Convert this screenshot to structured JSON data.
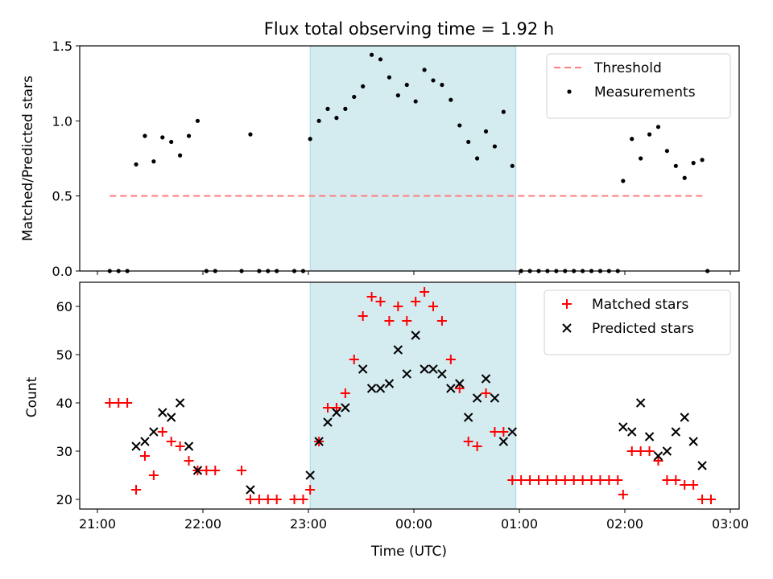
{
  "chart_data": [
    {
      "type": "scatter",
      "title": "Flux total observing time = 1.92 h",
      "xlabel": "",
      "ylabel": "Matched/Predicted stars",
      "x_range": [
        "21:00",
        "03:00"
      ],
      "xticks": [],
      "ylim": [
        0,
        1.5
      ],
      "yticks": [
        "0.0",
        "0.5",
        "1.0",
        "1.5"
      ],
      "ytick_values": [
        0,
        0.5,
        1.0,
        1.5
      ],
      "highlight_span": [
        "23:01",
        "00:58"
      ],
      "legend_position": "upper right",
      "threshold": {
        "name": "Threshold",
        "value": 0.5,
        "x_start": "21:07",
        "x_end": "02:46",
        "color": "#ff7f7f"
      },
      "series": [
        {
          "name": "Measurements",
          "marker": "dot",
          "color": "#000000",
          "points": [
            [
              "21:07",
              0.0
            ],
            [
              "21:12",
              0.0
            ],
            [
              "21:17",
              0.0
            ],
            [
              "21:22",
              0.71
            ],
            [
              "21:27",
              0.9
            ],
            [
              "21:32",
              0.73
            ],
            [
              "21:37",
              0.89
            ],
            [
              "21:42",
              0.86
            ],
            [
              "21:47",
              0.77
            ],
            [
              "21:52",
              0.9
            ],
            [
              "21:57",
              1.0
            ],
            [
              "22:02",
              0.0
            ],
            [
              "22:07",
              0.0
            ],
            [
              "22:22",
              0.0
            ],
            [
              "22:27",
              0.91
            ],
            [
              "22:32",
              0.0
            ],
            [
              "22:37",
              0.0
            ],
            [
              "22:42",
              0.0
            ],
            [
              "22:52",
              0.0
            ],
            [
              "22:57",
              0.0
            ],
            [
              "23:01",
              0.88
            ],
            [
              "23:06",
              1.0
            ],
            [
              "23:11",
              1.08
            ],
            [
              "23:16",
              1.02
            ],
            [
              "23:21",
              1.08
            ],
            [
              "23:26",
              1.16
            ],
            [
              "23:31",
              1.23
            ],
            [
              "23:36",
              1.44
            ],
            [
              "23:41",
              1.41
            ],
            [
              "23:46",
              1.29
            ],
            [
              "23:51",
              1.17
            ],
            [
              "23:56",
              1.24
            ],
            [
              "00:01",
              1.13
            ],
            [
              "00:06",
              1.34
            ],
            [
              "00:11",
              1.27
            ],
            [
              "00:16",
              1.24
            ],
            [
              "00:21",
              1.14
            ],
            [
              "00:26",
              0.97
            ],
            [
              "00:31",
              0.86
            ],
            [
              "00:36",
              0.75
            ],
            [
              "00:41",
              0.93
            ],
            [
              "00:46",
              0.83
            ],
            [
              "00:51",
              1.06
            ],
            [
              "00:56",
              0.7
            ],
            [
              "01:01",
              0.0
            ],
            [
              "01:06",
              0.0
            ],
            [
              "01:11",
              0.0
            ],
            [
              "01:16",
              0.0
            ],
            [
              "01:21",
              0.0
            ],
            [
              "01:26",
              0.0
            ],
            [
              "01:31",
              0.0
            ],
            [
              "01:36",
              0.0
            ],
            [
              "01:41",
              0.0
            ],
            [
              "01:46",
              0.0
            ],
            [
              "01:51",
              0.0
            ],
            [
              "01:56",
              0.0
            ],
            [
              "01:59",
              0.6
            ],
            [
              "02:04",
              0.88
            ],
            [
              "02:09",
              0.75
            ],
            [
              "02:14",
              0.91
            ],
            [
              "02:19",
              0.96
            ],
            [
              "02:24",
              0.8
            ],
            [
              "02:29",
              0.7
            ],
            [
              "02:34",
              0.62
            ],
            [
              "02:39",
              0.72
            ],
            [
              "02:44",
              0.74
            ],
            [
              "02:47",
              0.0
            ]
          ]
        }
      ]
    },
    {
      "type": "scatter",
      "title": "",
      "xlabel": "Time (UTC)",
      "ylabel": "Count",
      "x_range": [
        "21:00",
        "03:00"
      ],
      "xticks": [
        "21:00",
        "22:00",
        "23:00",
        "00:00",
        "01:00",
        "02:00",
        "03:00"
      ],
      "ylim": [
        18,
        65
      ],
      "yticks": [
        "20",
        "30",
        "40",
        "50",
        "60"
      ],
      "ytick_values": [
        20,
        30,
        40,
        50,
        60
      ],
      "highlight_span": [
        "23:01",
        "00:58"
      ],
      "legend_position": "upper right",
      "series": [
        {
          "name": "Matched stars",
          "marker": "plus",
          "color": "#ff0000",
          "points": [
            [
              "21:07",
              40
            ],
            [
              "21:12",
              40
            ],
            [
              "21:17",
              40
            ],
            [
              "21:22",
              22
            ],
            [
              "21:27",
              29
            ],
            [
              "21:32",
              25
            ],
            [
              "21:37",
              34
            ],
            [
              "21:42",
              32
            ],
            [
              "21:47",
              31
            ],
            [
              "21:52",
              28
            ],
            [
              "21:57",
              26
            ],
            [
              "22:02",
              26
            ],
            [
              "22:07",
              26
            ],
            [
              "22:22",
              26
            ],
            [
              "22:27",
              20
            ],
            [
              "22:32",
              20
            ],
            [
              "22:37",
              20
            ],
            [
              "22:42",
              20
            ],
            [
              "22:52",
              20
            ],
            [
              "22:57",
              20
            ],
            [
              "23:01",
              22
            ],
            [
              "23:06",
              32
            ],
            [
              "23:11",
              39
            ],
            [
              "23:16",
              39
            ],
            [
              "23:21",
              42
            ],
            [
              "23:26",
              49
            ],
            [
              "23:31",
              58
            ],
            [
              "23:36",
              62
            ],
            [
              "23:41",
              61
            ],
            [
              "23:46",
              57
            ],
            [
              "23:51",
              60
            ],
            [
              "23:56",
              57
            ],
            [
              "00:01",
              61
            ],
            [
              "00:06",
              63
            ],
            [
              "00:11",
              60
            ],
            [
              "00:16",
              57
            ],
            [
              "00:21",
              49
            ],
            [
              "00:26",
              43
            ],
            [
              "00:31",
              32
            ],
            [
              "00:36",
              31
            ],
            [
              "00:41",
              42
            ],
            [
              "00:46",
              34
            ],
            [
              "00:51",
              34
            ],
            [
              "00:56",
              24
            ],
            [
              "01:01",
              24
            ],
            [
              "01:06",
              24
            ],
            [
              "01:11",
              24
            ],
            [
              "01:16",
              24
            ],
            [
              "01:21",
              24
            ],
            [
              "01:26",
              24
            ],
            [
              "01:31",
              24
            ],
            [
              "01:36",
              24
            ],
            [
              "01:41",
              24
            ],
            [
              "01:46",
              24
            ],
            [
              "01:51",
              24
            ],
            [
              "01:56",
              24
            ],
            [
              "01:59",
              21
            ],
            [
              "02:04",
              30
            ],
            [
              "02:09",
              30
            ],
            [
              "02:14",
              30
            ],
            [
              "02:19",
              28
            ],
            [
              "02:24",
              24
            ],
            [
              "02:29",
              24
            ],
            [
              "02:34",
              23
            ],
            [
              "02:39",
              23
            ],
            [
              "02:44",
              20
            ],
            [
              "02:49",
              20
            ]
          ]
        },
        {
          "name": "Predicted stars",
          "marker": "cross",
          "color": "#000000",
          "points": [
            [
              "21:22",
              31
            ],
            [
              "21:27",
              32
            ],
            [
              "21:32",
              34
            ],
            [
              "21:37",
              38
            ],
            [
              "21:42",
              37
            ],
            [
              "21:47",
              40
            ],
            [
              "21:52",
              31
            ],
            [
              "21:57",
              26
            ],
            [
              "22:27",
              22
            ],
            [
              "23:01",
              25
            ],
            [
              "23:06",
              32
            ],
            [
              "23:11",
              36
            ],
            [
              "23:16",
              38
            ],
            [
              "23:21",
              39
            ],
            [
              "23:31",
              47
            ],
            [
              "23:36",
              43
            ],
            [
              "23:41",
              43
            ],
            [
              "23:46",
              44
            ],
            [
              "23:51",
              51
            ],
            [
              "23:56",
              46
            ],
            [
              "00:01",
              54
            ],
            [
              "00:06",
              47
            ],
            [
              "00:11",
              47
            ],
            [
              "00:16",
              46
            ],
            [
              "00:21",
              43
            ],
            [
              "00:26",
              44
            ],
            [
              "00:31",
              37
            ],
            [
              "00:36",
              41
            ],
            [
              "00:41",
              45
            ],
            [
              "00:46",
              41
            ],
            [
              "00:51",
              32
            ],
            [
              "00:56",
              34
            ],
            [
              "01:59",
              35
            ],
            [
              "02:04",
              34
            ],
            [
              "02:09",
              40
            ],
            [
              "02:14",
              33
            ],
            [
              "02:19",
              29
            ],
            [
              "02:24",
              30
            ],
            [
              "02:29",
              34
            ],
            [
              "02:34",
              37
            ],
            [
              "02:39",
              32
            ],
            [
              "02:44",
              27
            ]
          ]
        }
      ]
    }
  ],
  "colors": {
    "highlight": "#d4ebf0",
    "highlight_edge": "#a9d6e0"
  }
}
